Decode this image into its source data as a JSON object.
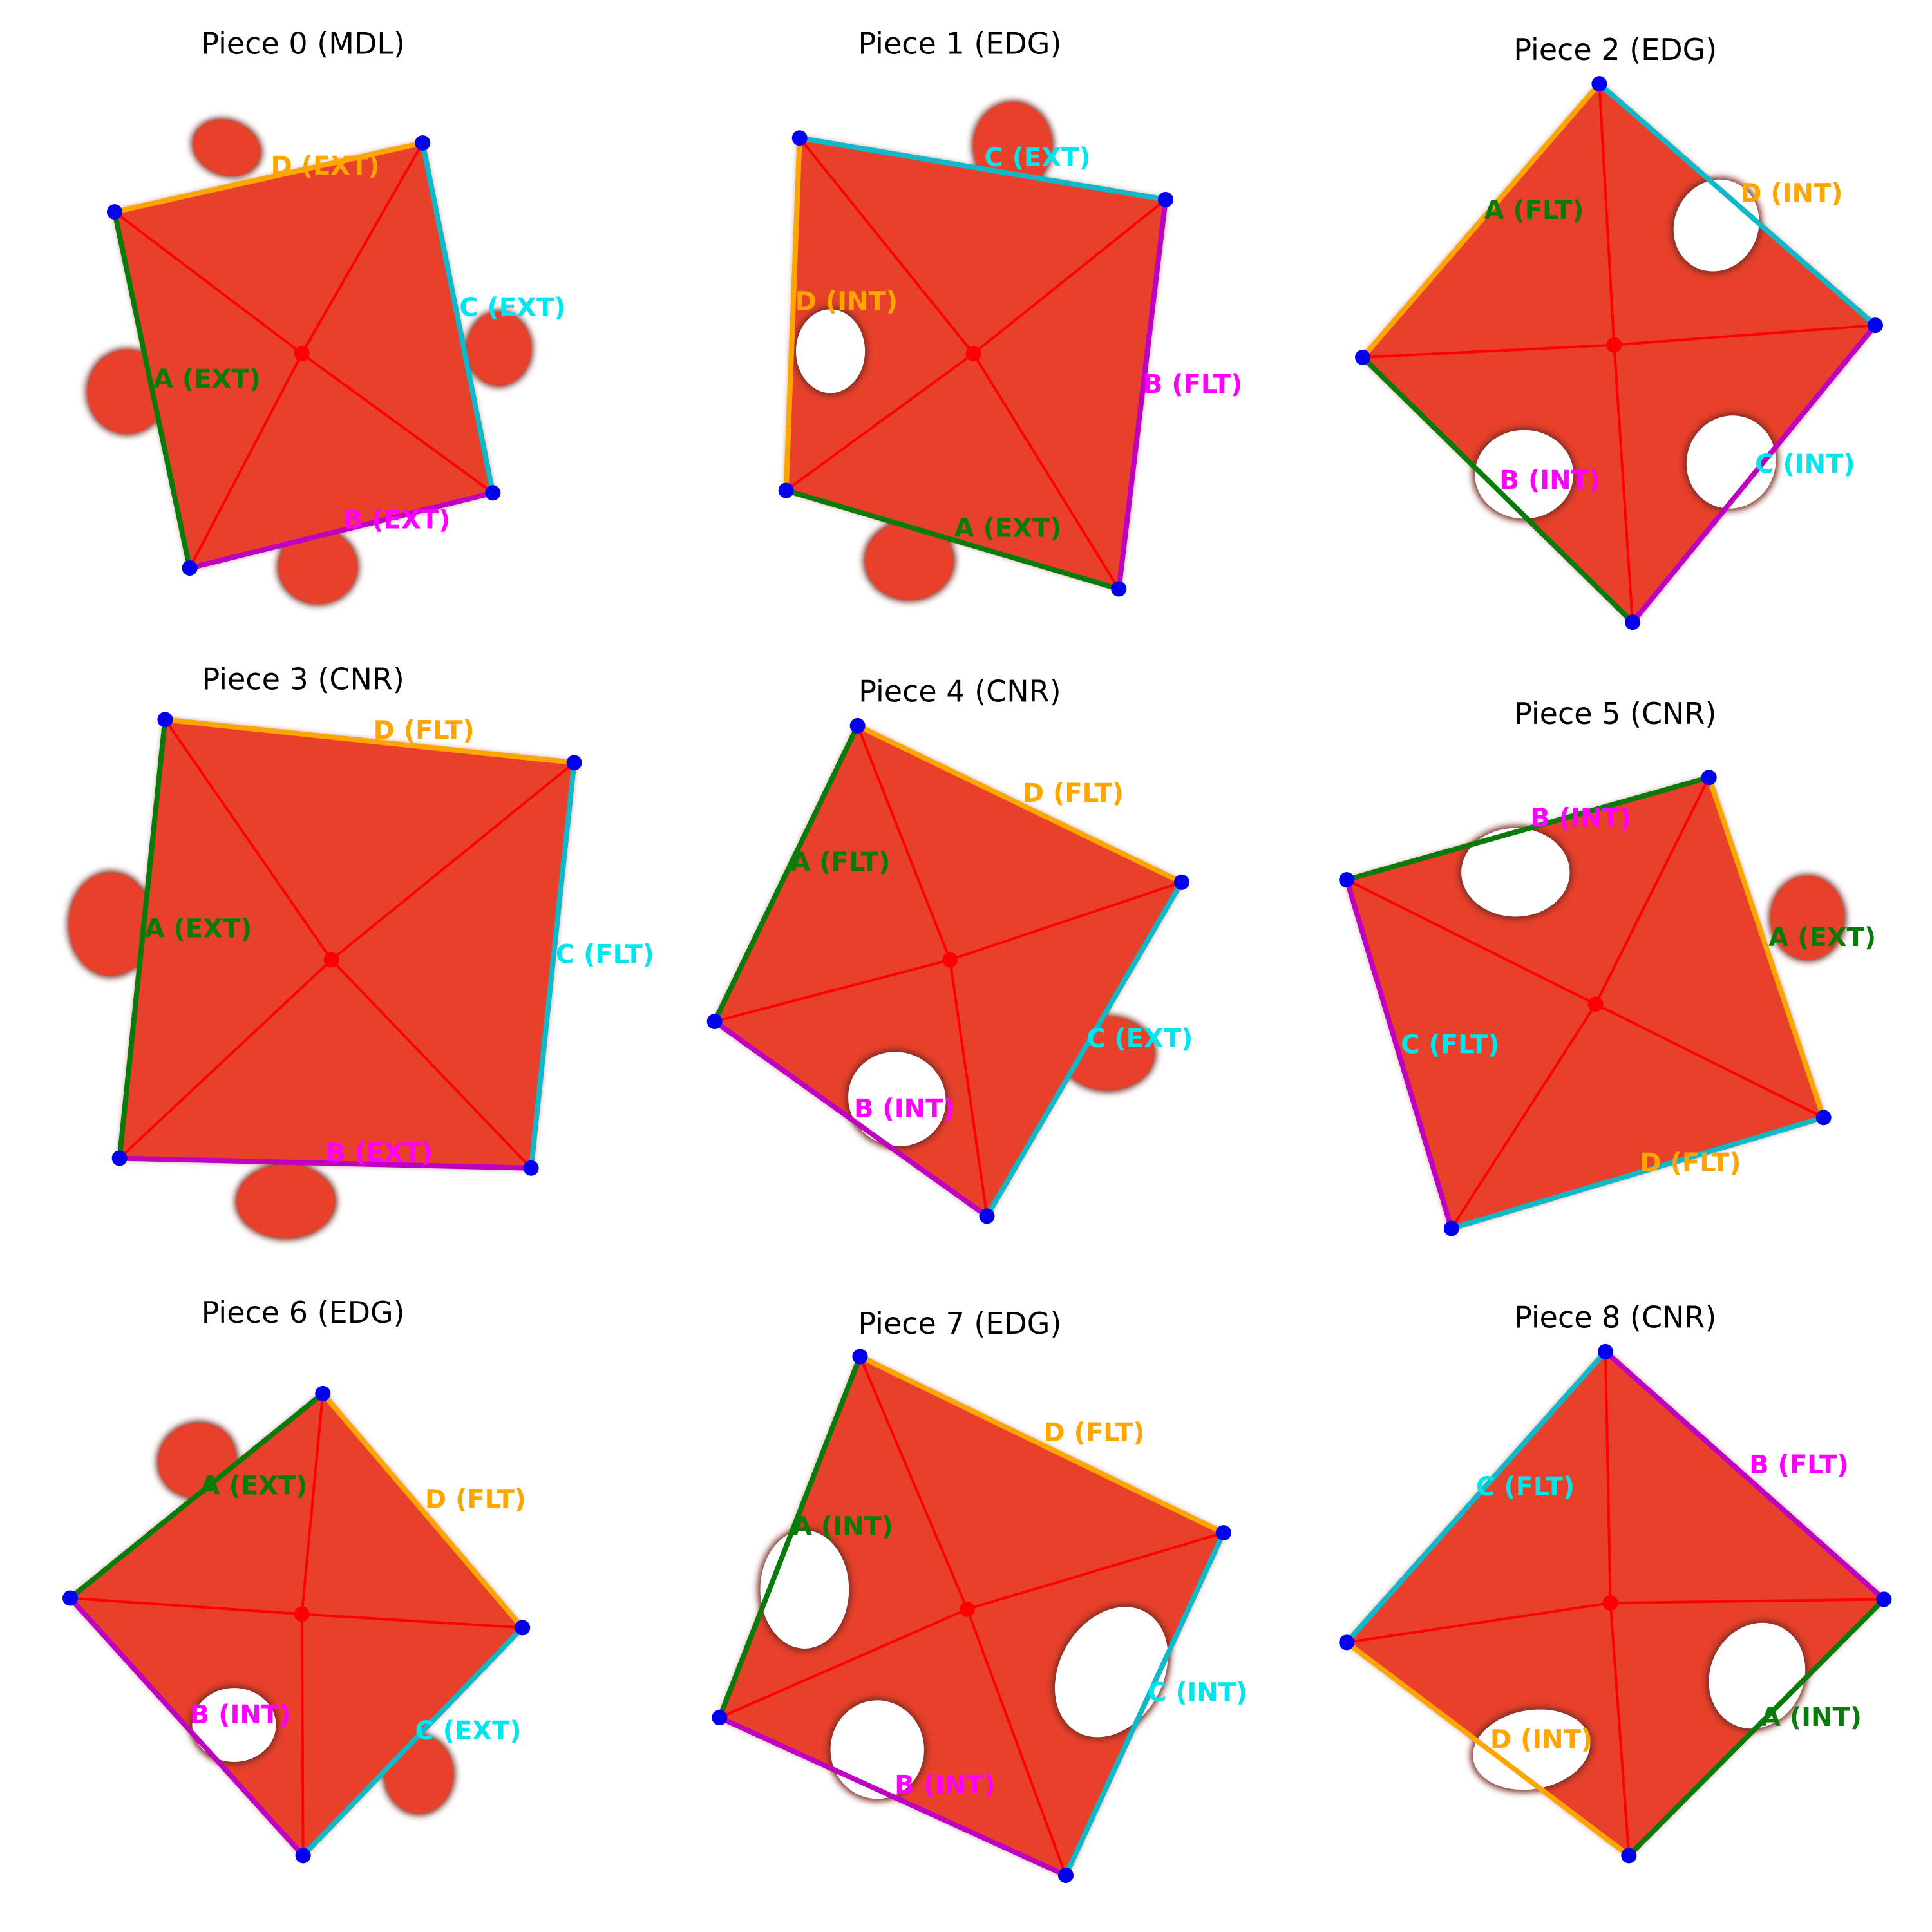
{
  "colors": {
    "piece_fill": "#e8412b",
    "piece_edge_blur": "#7a2a20",
    "diagonal": "#ff0000",
    "center_dot": "#ff0000",
    "corner_dot": "#0000ee",
    "A": "#0a7a0a",
    "B": "#c000c0",
    "C": "#10b8c8",
    "D": "#ffa500",
    "label_A": "#0a7a0a",
    "label_B": "#ff00ff",
    "label_C": "#00e5ee",
    "label_D": "#ffa500"
  },
  "pieces": [
    {
      "title": "Piece 0 (MDL)",
      "edges": [
        {
          "side": "A",
          "type": "EXT",
          "label": "A (EXT)"
        },
        {
          "side": "B",
          "type": "EXT",
          "label": "B (EXT)"
        },
        {
          "side": "C",
          "type": "EXT",
          "label": "C (EXT)"
        },
        {
          "side": "D",
          "type": "EXT",
          "label": "D (EXT)"
        }
      ]
    },
    {
      "title": "Piece 1 (EDG)",
      "edges": [
        {
          "side": "A",
          "type": "EXT",
          "label": "A (EXT)"
        },
        {
          "side": "B",
          "type": "FLT",
          "label": "B (FLT)"
        },
        {
          "side": "C",
          "type": "EXT",
          "label": "C (EXT)"
        },
        {
          "side": "D",
          "type": "INT",
          "label": "D (INT)"
        }
      ]
    },
    {
      "title": "Piece 2 (EDG)",
      "edges": [
        {
          "side": "A",
          "type": "FLT",
          "label": "A (FLT)"
        },
        {
          "side": "B",
          "type": "INT",
          "label": "B (INT)"
        },
        {
          "side": "C",
          "type": "INT",
          "label": "C (INT)"
        },
        {
          "side": "D",
          "type": "INT",
          "label": "D (INT)"
        }
      ]
    },
    {
      "title": "Piece 3 (CNR)",
      "edges": [
        {
          "side": "A",
          "type": "EXT",
          "label": "A (EXT)"
        },
        {
          "side": "B",
          "type": "EXT",
          "label": "B (EXT)"
        },
        {
          "side": "C",
          "type": "FLT",
          "label": "C (FLT)"
        },
        {
          "side": "D",
          "type": "FLT",
          "label": "D (FLT)"
        }
      ]
    },
    {
      "title": "Piece 4 (CNR)",
      "edges": [
        {
          "side": "A",
          "type": "FLT",
          "label": "A (FLT)"
        },
        {
          "side": "B",
          "type": "INT",
          "label": "B (INT)"
        },
        {
          "side": "C",
          "type": "EXT",
          "label": "C (EXT)"
        },
        {
          "side": "D",
          "type": "FLT",
          "label": "D (FLT)"
        }
      ]
    },
    {
      "title": "Piece 5 (CNR)",
      "edges": [
        {
          "side": "A",
          "type": "EXT",
          "label": "A (EXT)"
        },
        {
          "side": "B",
          "type": "INT",
          "label": "B (INT)"
        },
        {
          "side": "C",
          "type": "FLT",
          "label": "C (FLT)"
        },
        {
          "side": "D",
          "type": "FLT",
          "label": "D (FLT)"
        }
      ]
    },
    {
      "title": "Piece 6 (EDG)",
      "edges": [
        {
          "side": "A",
          "type": "EXT",
          "label": "A (EXT)"
        },
        {
          "side": "B",
          "type": "INT",
          "label": "B (INT)"
        },
        {
          "side": "C",
          "type": "EXT",
          "label": "C (EXT)"
        },
        {
          "side": "D",
          "type": "FLT",
          "label": "D (FLT)"
        }
      ]
    },
    {
      "title": "Piece 7 (EDG)",
      "edges": [
        {
          "side": "A",
          "type": "INT",
          "label": "A (INT)"
        },
        {
          "side": "B",
          "type": "INT",
          "label": "B (INT)"
        },
        {
          "side": "C",
          "type": "INT",
          "label": "C (INT)"
        },
        {
          "side": "D",
          "type": "FLT",
          "label": "D (FLT)"
        }
      ]
    },
    {
      "title": "Piece 8 (CNR)",
      "edges": [
        {
          "side": "A",
          "type": "INT",
          "label": "A (INT)"
        },
        {
          "side": "B",
          "type": "FLT",
          "label": "B (FLT)"
        },
        {
          "side": "C",
          "type": "FLT",
          "label": "C (FLT)"
        },
        {
          "side": "D",
          "type": "INT",
          "label": "D (INT)"
        }
      ]
    }
  ]
}
